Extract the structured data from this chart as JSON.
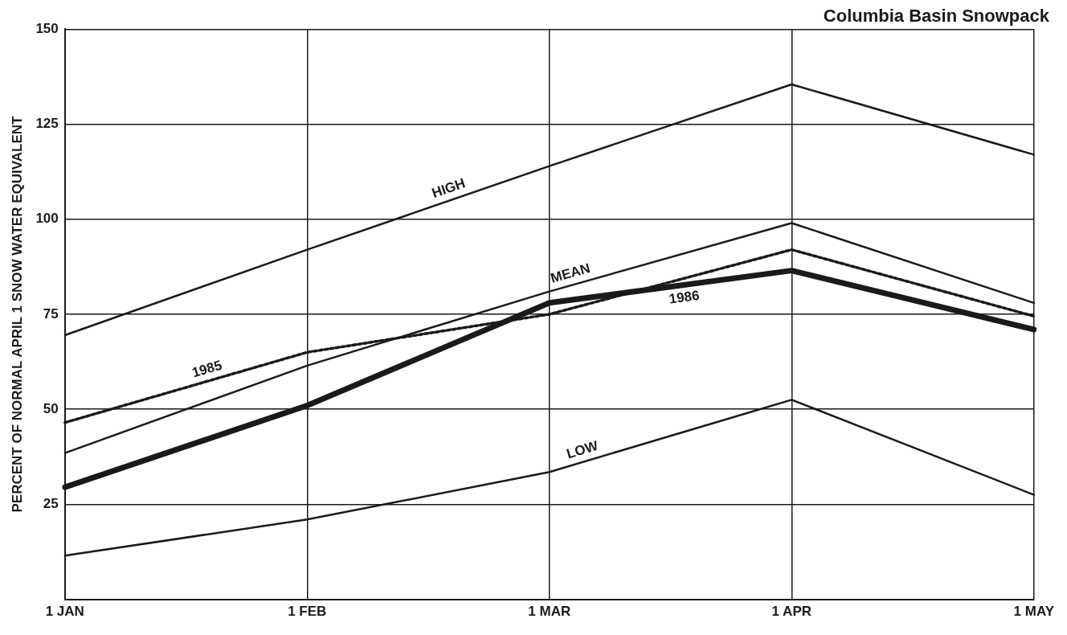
{
  "chart_data": {
    "type": "line",
    "title": "Columbia Basin Snowpack",
    "ylabel": "PERCENT OF NORMAL APRIL 1 SNOW WATER EQUIVALENT",
    "categories": [
      "1 JAN",
      "1 FEB",
      "1 MAR",
      "1 APR",
      "1 MAY"
    ],
    "series": [
      {
        "name": "HIGH",
        "color": "#1a1a1a",
        "values": [
          69.5,
          92,
          114,
          135.5,
          117
        ]
      },
      {
        "name": "MEAN",
        "color": "#1a1a1a",
        "values": [
          38.5,
          61.5,
          81,
          99,
          78
        ]
      },
      {
        "name": "1985",
        "color": "#1a1a1a",
        "values": [
          46.5,
          65,
          75,
          92,
          74.5
        ],
        "line_style": "dotted"
      },
      {
        "name": "1986",
        "color": "#1a1a1a",
        "values": [
          29.5,
          51,
          78,
          86.5,
          71
        ]
      },
      {
        "name": "LOW",
        "color": "#1a1a1a",
        "values": [
          11.5,
          21,
          33.5,
          52.5,
          27.5
        ]
      }
    ],
    "ylim": [
      0,
      150
    ],
    "yticks": [
      25,
      50,
      75,
      100,
      125,
      150
    ],
    "grid": true,
    "legend": false,
    "marker": "none"
  }
}
